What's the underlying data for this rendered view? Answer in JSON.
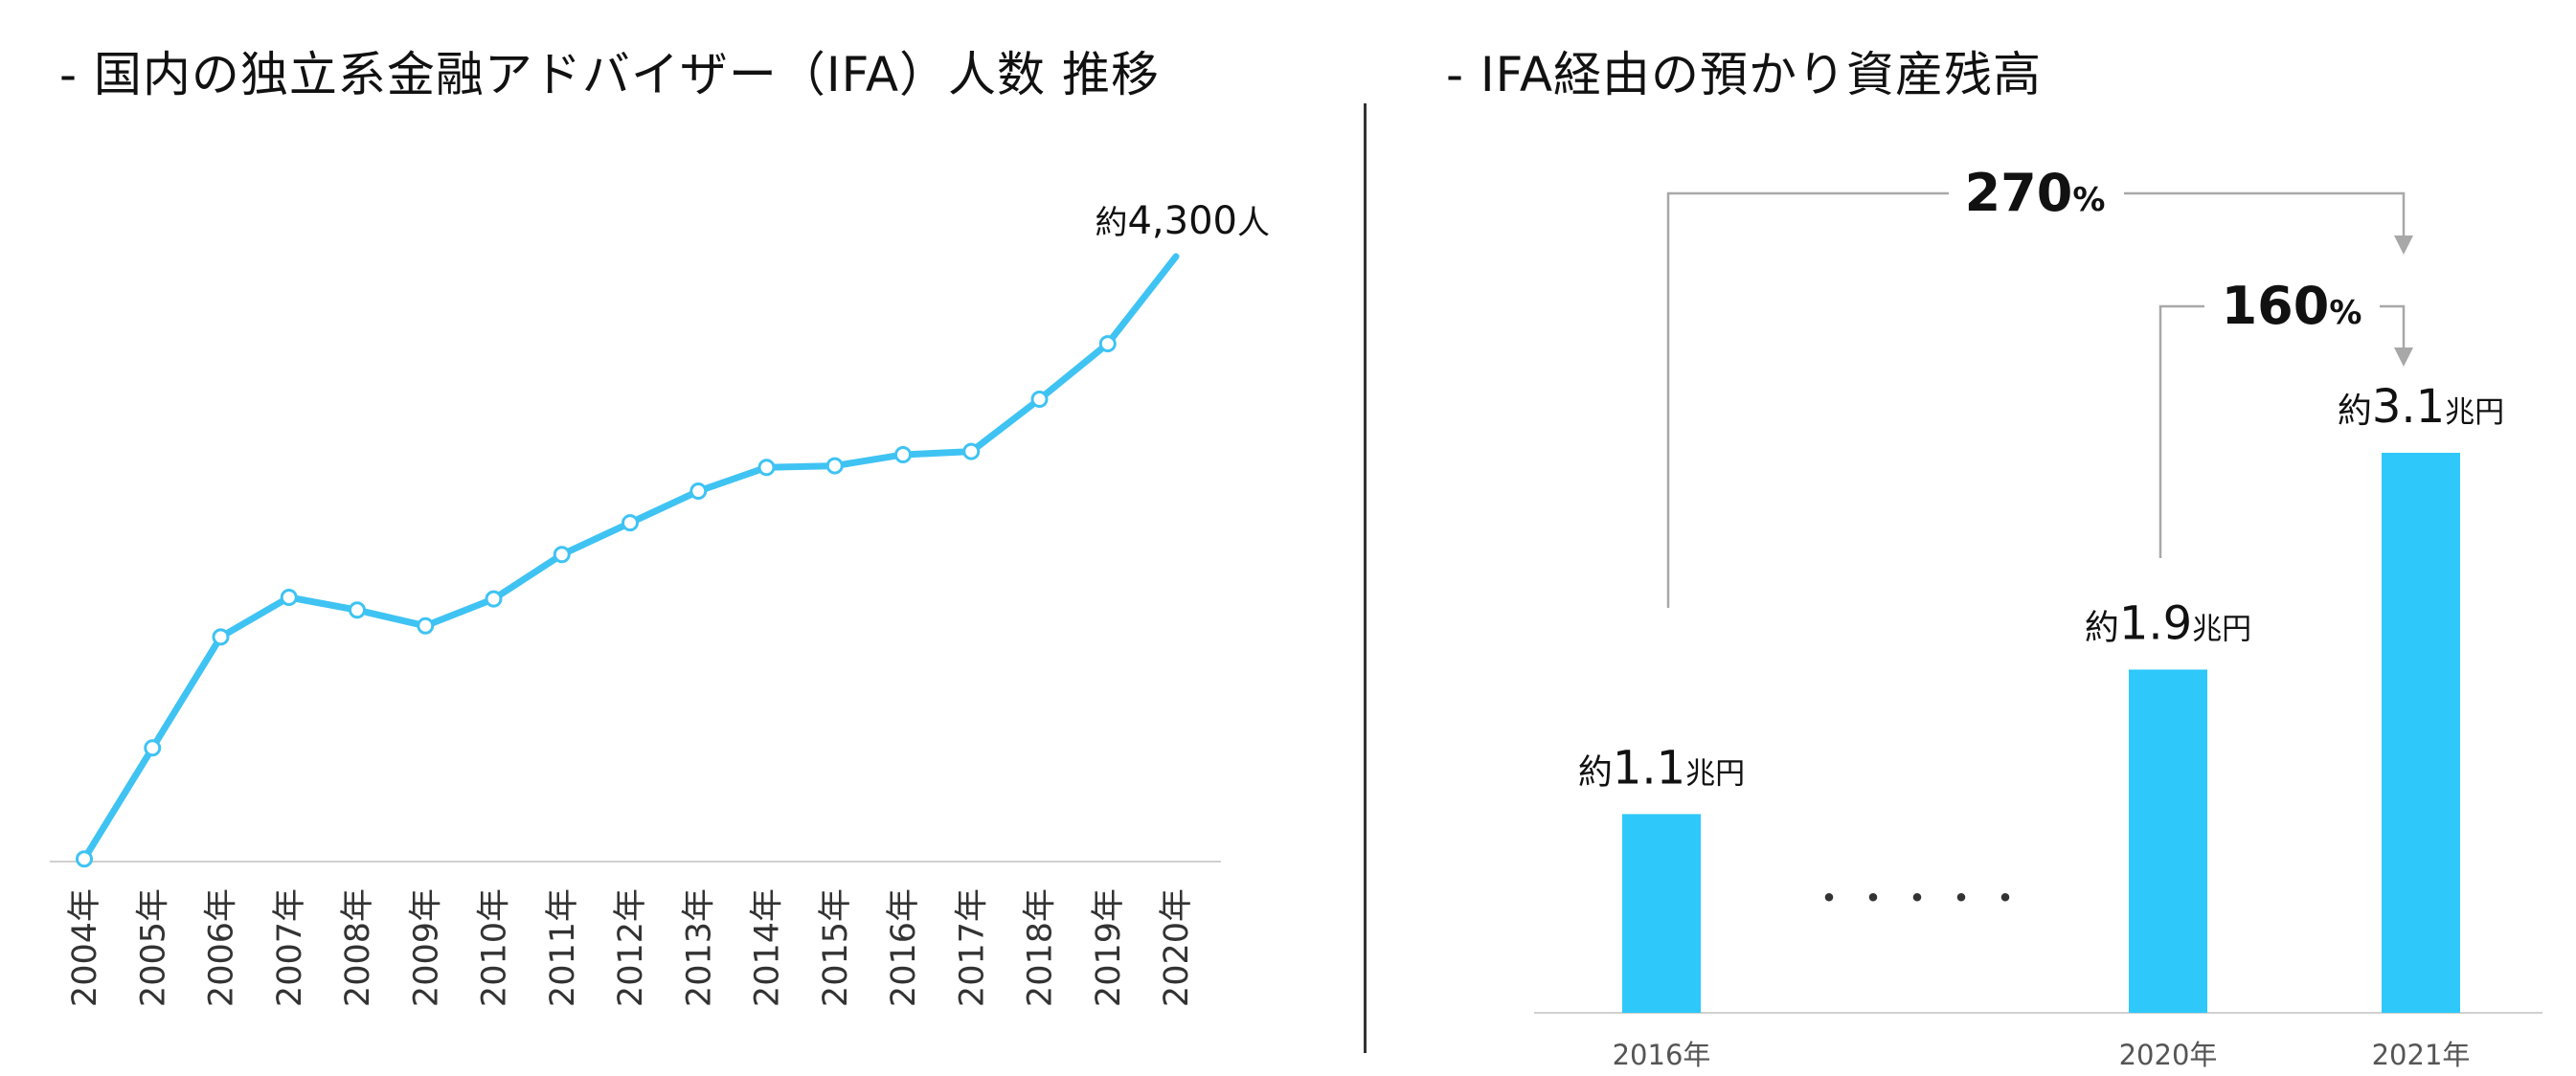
{
  "colors": {
    "line": "#3fc3f3",
    "bar": "#2ec8fb",
    "axis": "#d0d0d0",
    "connector": "#a8a8a8",
    "marker_fill": "#ffffff"
  },
  "left_panel": {
    "title": "- 国内の独立系金融アドバイザー（IFA）人数 推移"
  },
  "right_panel": {
    "title": "- IFA経由の預かり資産残高",
    "ellipsis": "・・・・・"
  },
  "chart_data": [
    {
      "type": "line",
      "title": "- 国内の独立系金融アドバイザー（IFA）人数 推移",
      "x": [
        "2004年",
        "2005年",
        "2006年",
        "2007年",
        "2008年",
        "2009年",
        "2010年",
        "2011年",
        "2012年",
        "2013年",
        "2014年",
        "2015年",
        "2016年",
        "2017年",
        "2018年",
        "2019年",
        "2020年"
      ],
      "series": [
        {
          "values": [
            500,
            1200,
            1900,
            2150,
            2070,
            1970,
            2140,
            2420,
            2620,
            2820,
            2970,
            2980,
            3050,
            3070,
            3400,
            3750,
            4300
          ]
        }
      ],
      "ylim": [
        0,
        4300
      ],
      "annotations": [
        {
          "x": "2020年",
          "prefix": "約",
          "value": "4,300",
          "unit": "人"
        }
      ],
      "markers": "hollow circles except final point",
      "grid": false
    },
    {
      "type": "bar",
      "title": "- IFA経由の預かり資産残高",
      "categories": [
        "2016年",
        "2020年",
        "2021年"
      ],
      "values": [
        1.1,
        1.9,
        3.1
      ],
      "unit": "兆円",
      "data_labels": [
        {
          "prefix": "約",
          "value": "1.1",
          "unit": "兆円"
        },
        {
          "prefix": "約",
          "value": "1.9",
          "unit": "兆円"
        },
        {
          "prefix": "約",
          "value": "3.1",
          "unit": "兆円"
        }
      ],
      "ylim": [
        0,
        3.1
      ],
      "growth_annotations": [
        {
          "from": "2016年",
          "to": "2021年",
          "value": "270",
          "unit": "%"
        },
        {
          "from": "2020年",
          "to": "2021年",
          "value": "160",
          "unit": "%"
        }
      ],
      "grid": false
    }
  ]
}
